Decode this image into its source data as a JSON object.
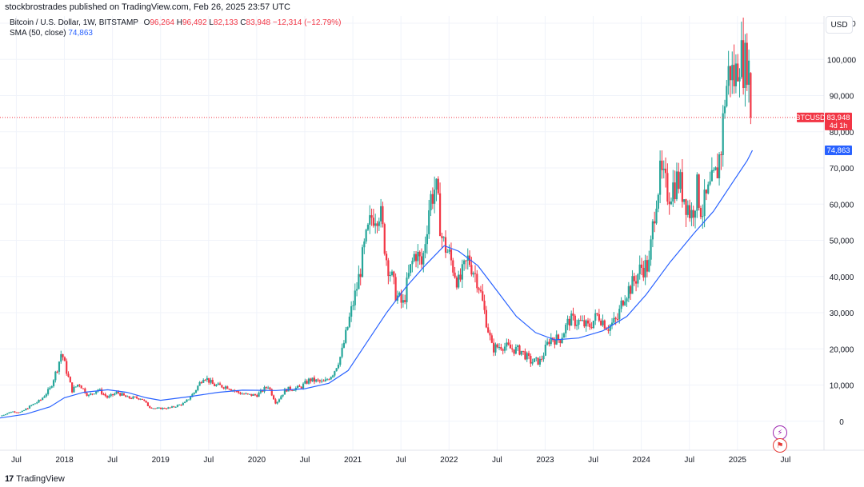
{
  "header": {
    "published_line": "stockbrostrades published on TradingView.com, Feb 26, 2025 23:57 UTC"
  },
  "legend": {
    "symbol": "Bitcoin / U.S. Dollar, 1W, BITSTAMP",
    "o_label": "O",
    "o_value": "96,264",
    "h_label": "H",
    "h_value": "96,492",
    "l_label": "L",
    "l_value": "82,133",
    "c_label": "C",
    "c_value": "83,948",
    "change": "−12,314 (−12.79%)",
    "sma_label": "SMA (50, close)",
    "sma_value": "74,863"
  },
  "currency_button": "USD",
  "price_tag": {
    "ticker": "BTCUSD",
    "price": "83,948",
    "countdown": "4d 1h"
  },
  "sma_tag": "74,863",
  "footer": {
    "brand": "TradingView",
    "logo": "17"
  },
  "icons": [
    "lightning-icon",
    "us-flag-icon"
  ],
  "colors": {
    "up": "#26a69a",
    "down": "#f23645",
    "sma": "#2962ff",
    "grid": "#f0f3fa"
  },
  "chart_data": {
    "type": "candlestick",
    "title": "Bitcoin / U.S. Dollar, 1W, BITSTAMP",
    "ylim": [
      -8000,
      112000
    ],
    "y_ticks": [
      0,
      10000,
      20000,
      30000,
      40000,
      50000,
      60000,
      70000,
      80000,
      90000,
      100000,
      110000
    ],
    "y_tick_labels": [
      "0",
      "10,000",
      "20,000",
      "30,000",
      "40,000",
      "50,000",
      "60,000",
      "70,000",
      "80,000",
      "90,000",
      "100,000",
      "110,000"
    ],
    "x_ticks": [
      {
        "t": 2017.5,
        "label": "Jul"
      },
      {
        "t": 2018.0,
        "label": "2018"
      },
      {
        "t": 2018.5,
        "label": "Jul"
      },
      {
        "t": 2019.0,
        "label": "2019"
      },
      {
        "t": 2019.5,
        "label": "Jul"
      },
      {
        "t": 2020.0,
        "label": "2020"
      },
      {
        "t": 2020.5,
        "label": "Jul"
      },
      {
        "t": 2021.0,
        "label": "2021"
      },
      {
        "t": 2021.5,
        "label": "Jul"
      },
      {
        "t": 2022.0,
        "label": "2022"
      },
      {
        "t": 2022.5,
        "label": "Jul"
      },
      {
        "t": 2023.0,
        "label": "2023"
      },
      {
        "t": 2023.5,
        "label": "Jul"
      },
      {
        "t": 2024.0,
        "label": "2024"
      },
      {
        "t": 2024.5,
        "label": "Jul"
      },
      {
        "t": 2025.0,
        "label": "2025"
      },
      {
        "t": 2025.5,
        "label": "Jul"
      }
    ],
    "xlim": [
      2017.33,
      2025.9
    ],
    "last_close": 83948,
    "price_path": [
      [
        2017.33,
        1400
      ],
      [
        2017.45,
        2700
      ],
      [
        2017.55,
        2500
      ],
      [
        2017.65,
        4300
      ],
      [
        2017.75,
        5800
      ],
      [
        2017.85,
        9000
      ],
      [
        2017.93,
        15000
      ],
      [
        2017.97,
        19200
      ],
      [
        2018.02,
        14000
      ],
      [
        2018.08,
        8500
      ],
      [
        2018.15,
        10500
      ],
      [
        2018.25,
        7000
      ],
      [
        2018.35,
        8800
      ],
      [
        2018.45,
        6500
      ],
      [
        2018.55,
        8000
      ],
      [
        2018.65,
        6500
      ],
      [
        2018.8,
        6400
      ],
      [
        2018.88,
        4000
      ],
      [
        2018.95,
        3500
      ],
      [
        2019.1,
        3700
      ],
      [
        2019.25,
        5000
      ],
      [
        2019.35,
        8000
      ],
      [
        2019.45,
        12500
      ],
      [
        2019.55,
        10000
      ],
      [
        2019.7,
        9500
      ],
      [
        2019.8,
        8000
      ],
      [
        2019.9,
        7300
      ],
      [
        2020.0,
        7200
      ],
      [
        2020.12,
        9800
      ],
      [
        2020.2,
        5000
      ],
      [
        2020.3,
        8800
      ],
      [
        2020.45,
        9300
      ],
      [
        2020.55,
        11500
      ],
      [
        2020.7,
        10700
      ],
      [
        2020.8,
        13500
      ],
      [
        2020.88,
        18500
      ],
      [
        2020.97,
        29000
      ],
      [
        2021.05,
        38000
      ],
      [
        2021.12,
        48000
      ],
      [
        2021.2,
        57000
      ],
      [
        2021.28,
        58500
      ],
      [
        2021.35,
        45000
      ],
      [
        2021.45,
        35000
      ],
      [
        2021.52,
        32000
      ],
      [
        2021.58,
        40000
      ],
      [
        2021.65,
        47000
      ],
      [
        2021.72,
        43000
      ],
      [
        2021.8,
        61000
      ],
      [
        2021.86,
        65000
      ],
      [
        2021.93,
        50000
      ],
      [
        2022.0,
        46000
      ],
      [
        2022.1,
        38000
      ],
      [
        2022.2,
        45000
      ],
      [
        2022.3,
        39000
      ],
      [
        2022.37,
        30000
      ],
      [
        2022.45,
        20000
      ],
      [
        2022.55,
        21000
      ],
      [
        2022.65,
        20000
      ],
      [
        2022.75,
        19500
      ],
      [
        2022.85,
        16500
      ],
      [
        2022.95,
        16600
      ],
      [
        2023.05,
        23000
      ],
      [
        2023.15,
        22500
      ],
      [
        2023.25,
        28000
      ],
      [
        2023.35,
        27500
      ],
      [
        2023.45,
        26000
      ],
      [
        2023.55,
        29500
      ],
      [
        2023.65,
        26000
      ],
      [
        2023.75,
        28000
      ],
      [
        2023.82,
        35000
      ],
      [
        2023.9,
        37500
      ],
      [
        2024.0,
        42500
      ],
      [
        2024.08,
        43000
      ],
      [
        2024.15,
        62000
      ],
      [
        2024.2,
        68000
      ],
      [
        2024.28,
        63000
      ],
      [
        2024.38,
        67000
      ],
      [
        2024.45,
        62000
      ],
      [
        2024.52,
        57000
      ],
      [
        2024.58,
        64000
      ],
      [
        2024.63,
        58000
      ],
      [
        2024.7,
        63000
      ],
      [
        2024.78,
        68000
      ],
      [
        2024.83,
        76000
      ],
      [
        2024.87,
        90000
      ],
      [
        2024.92,
        98000
      ],
      [
        2024.97,
        94000
      ],
      [
        2025.02,
        102000
      ],
      [
        2025.07,
        98000
      ],
      [
        2025.1,
        100000
      ],
      [
        2025.13,
        96000
      ],
      [
        2025.155,
        83948
      ]
    ],
    "sma_path": [
      [
        2017.33,
        900
      ],
      [
        2017.6,
        2000
      ],
      [
        2017.85,
        4000
      ],
      [
        2018.0,
        6500
      ],
      [
        2018.2,
        8000
      ],
      [
        2018.45,
        8700
      ],
      [
        2018.65,
        8000
      ],
      [
        2018.85,
        6500
      ],
      [
        2019.0,
        5800
      ],
      [
        2019.3,
        6800
      ],
      [
        2019.6,
        8000
      ],
      [
        2019.85,
        8600
      ],
      [
        2020.2,
        8500
      ],
      [
        2020.5,
        9000
      ],
      [
        2020.75,
        10500
      ],
      [
        2020.95,
        14000
      ],
      [
        2021.15,
        22000
      ],
      [
        2021.35,
        30000
      ],
      [
        2021.55,
        37000
      ],
      [
        2021.75,
        43000
      ],
      [
        2021.95,
        48500
      ],
      [
        2022.1,
        47000
      ],
      [
        2022.3,
        43000
      ],
      [
        2022.5,
        36000
      ],
      [
        2022.7,
        29000
      ],
      [
        2022.9,
        24500
      ],
      [
        2023.1,
        22500
      ],
      [
        2023.35,
        23000
      ],
      [
        2023.6,
        25000
      ],
      [
        2023.85,
        29000
      ],
      [
        2024.05,
        35000
      ],
      [
        2024.3,
        44000
      ],
      [
        2024.55,
        52000
      ],
      [
        2024.75,
        58000
      ],
      [
        2024.95,
        66000
      ],
      [
        2025.1,
        72000
      ],
      [
        2025.155,
        74863
      ]
    ]
  }
}
